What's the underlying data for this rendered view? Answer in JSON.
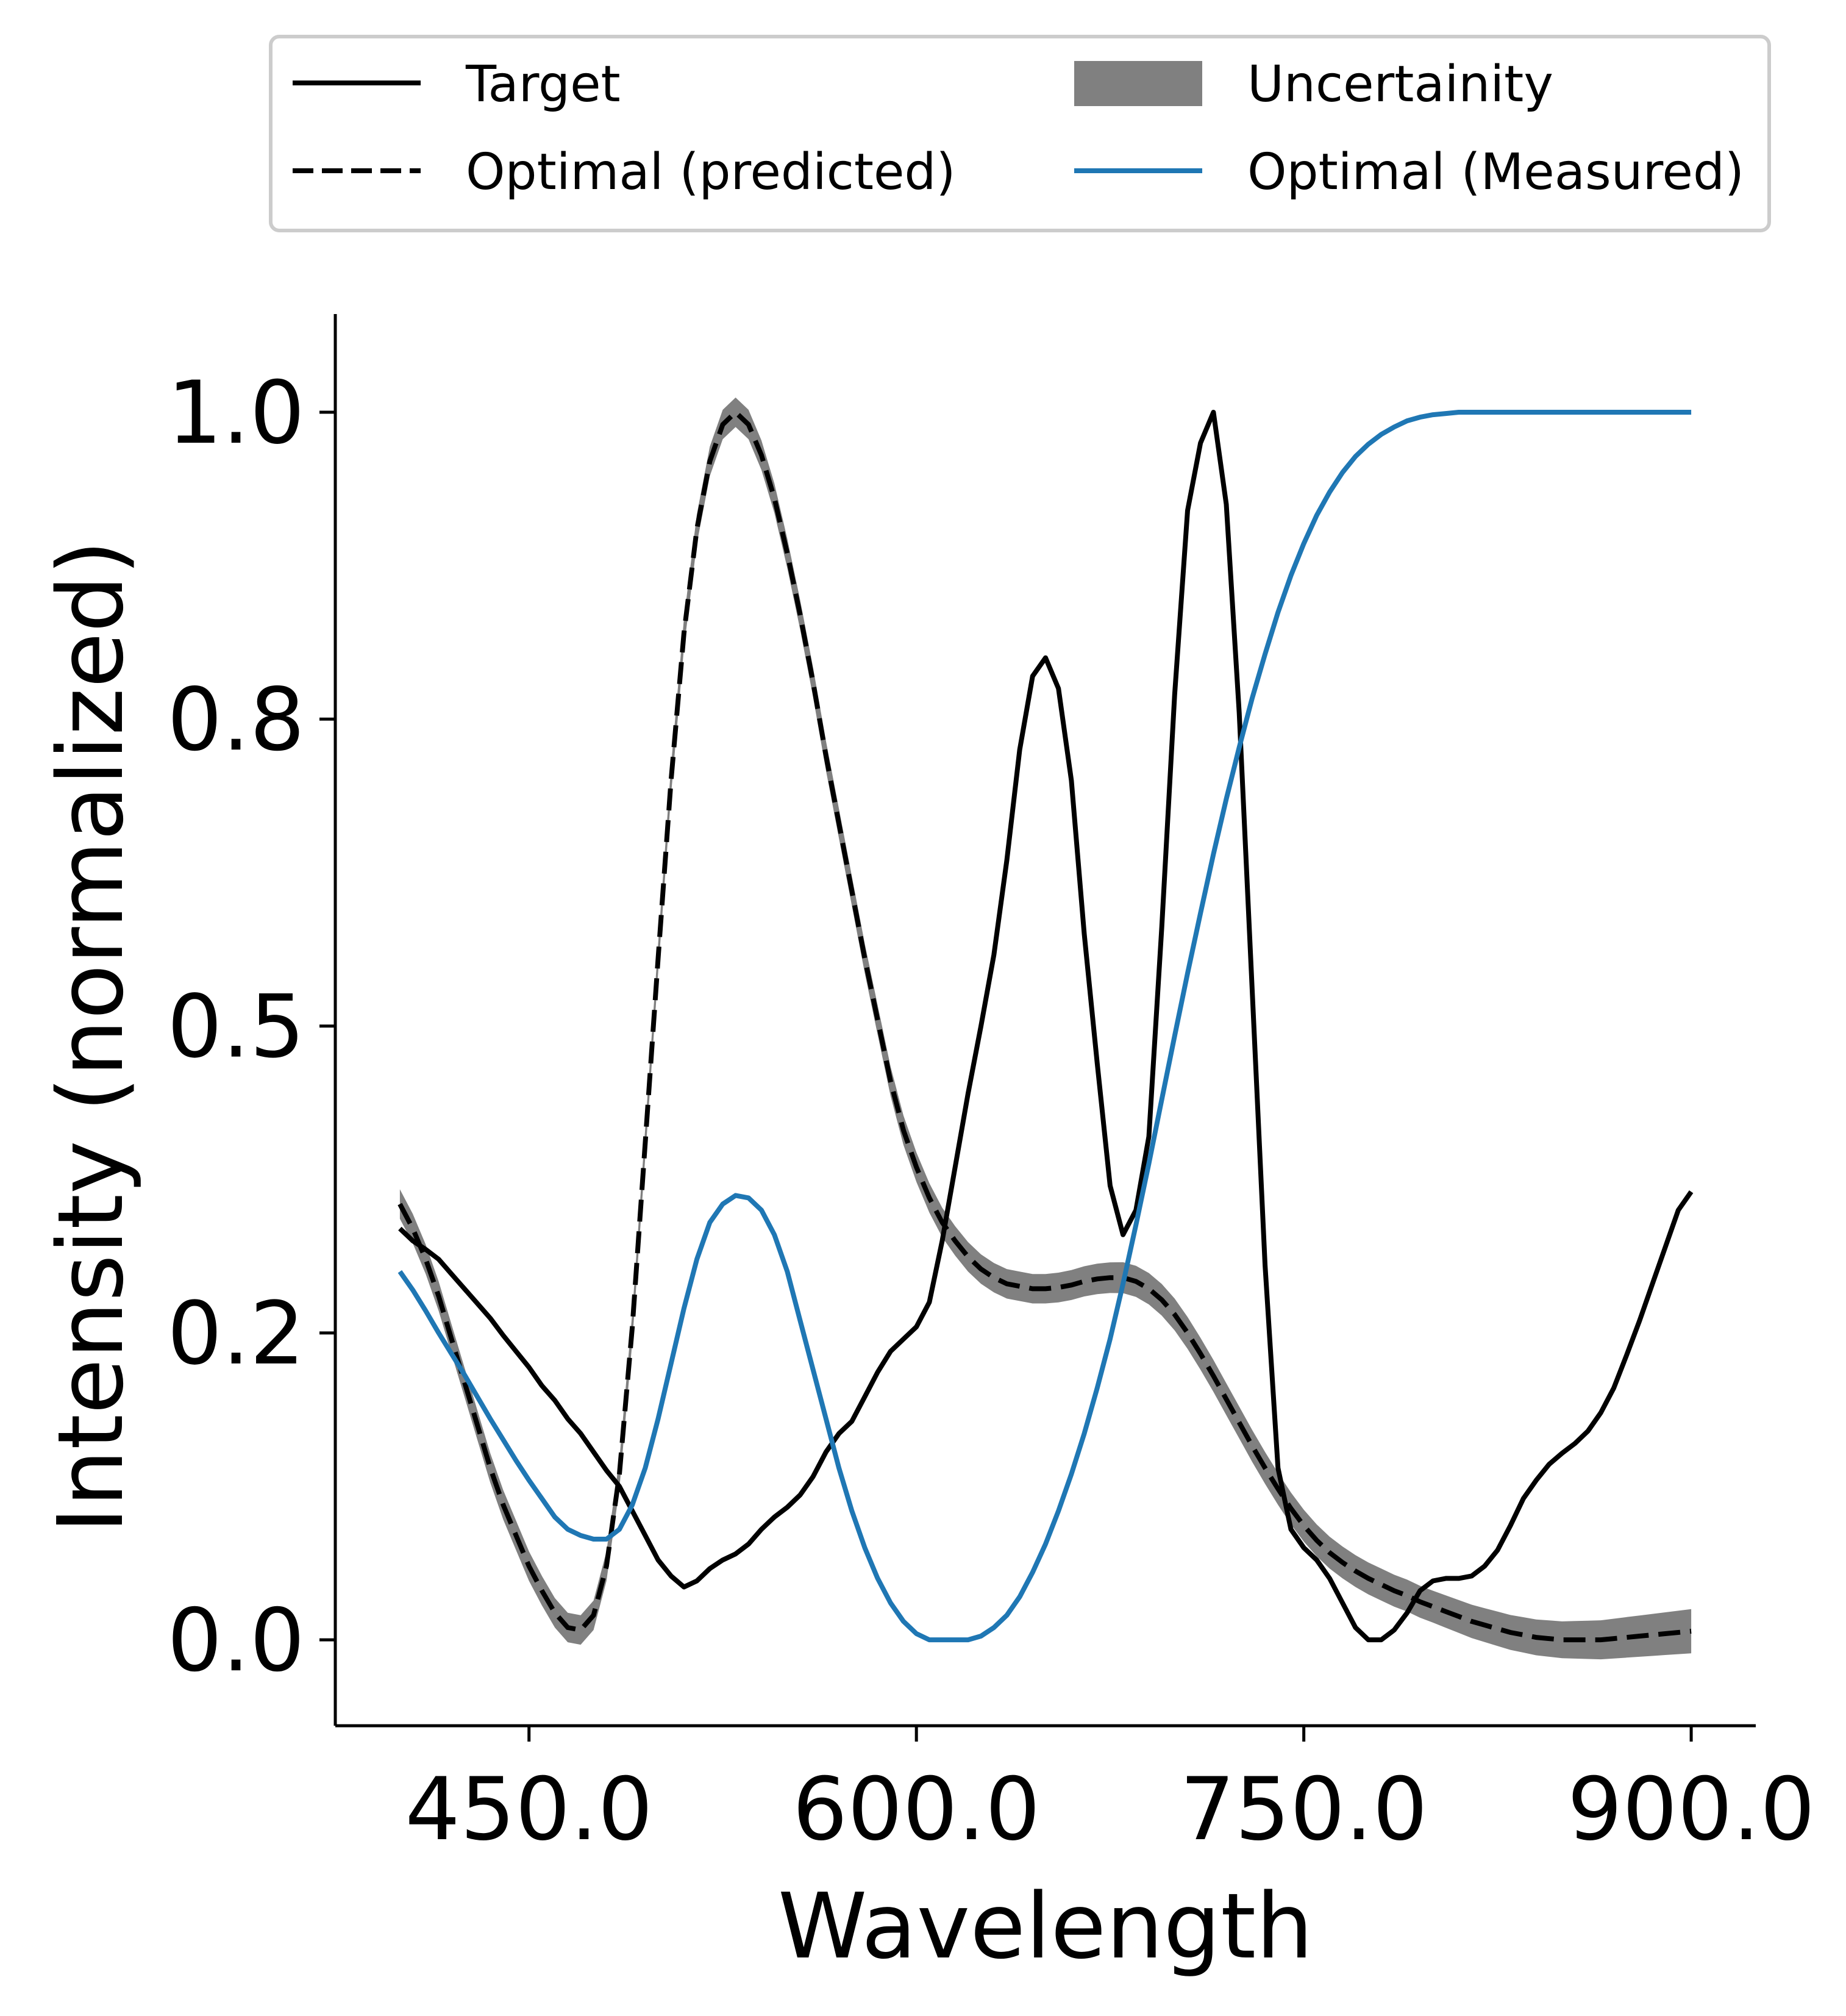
{
  "chart_data": {
    "type": "line",
    "xlabel": "Wavelength",
    "ylabel": "Intensity (normalized)",
    "xlim": [
      375,
      925
    ],
    "ylim": [
      -0.07,
      1.08
    ],
    "x_ticks": [
      450,
      600,
      750,
      900
    ],
    "x_tick_labels": [
      "450.0",
      "600.0",
      "750.0",
      "900.0"
    ],
    "y_ticks": [
      0.0,
      0.25,
      0.5,
      0.75,
      1.0
    ],
    "y_tick_labels": [
      "0.0",
      "0.2",
      "0.5",
      "0.8",
      "1.0"
    ],
    "grid": false,
    "legend": {
      "position": "top",
      "columns": 2
    },
    "series": [
      {
        "name": "Target",
        "style": "solid",
        "color": "#000000",
        "points": [
          [
            400,
            0.335
          ],
          [
            405,
            0.325
          ],
          [
            410,
            0.318
          ],
          [
            415,
            0.31
          ],
          [
            420,
            0.298
          ],
          [
            425,
            0.286
          ],
          [
            430,
            0.274
          ],
          [
            435,
            0.262
          ],
          [
            440,
            0.248
          ],
          [
            445,
            0.235
          ],
          [
            450,
            0.222
          ],
          [
            455,
            0.207
          ],
          [
            460,
            0.195
          ],
          [
            465,
            0.18
          ],
          [
            470,
            0.168
          ],
          [
            475,
            0.153
          ],
          [
            480,
            0.138
          ],
          [
            485,
            0.125
          ],
          [
            490,
            0.105
          ],
          [
            495,
            0.085
          ],
          [
            500,
            0.065
          ],
          [
            505,
            0.052
          ],
          [
            510,
            0.043
          ],
          [
            515,
            0.048
          ],
          [
            520,
            0.058
          ],
          [
            525,
            0.065
          ],
          [
            530,
            0.07
          ],
          [
            535,
            0.078
          ],
          [
            540,
            0.09
          ],
          [
            545,
            0.1
          ],
          [
            550,
            0.108
          ],
          [
            555,
            0.118
          ],
          [
            560,
            0.133
          ],
          [
            565,
            0.153
          ],
          [
            570,
            0.168
          ],
          [
            575,
            0.178
          ],
          [
            580,
            0.198
          ],
          [
            585,
            0.218
          ],
          [
            590,
            0.235
          ],
          [
            595,
            0.245
          ],
          [
            600,
            0.255
          ],
          [
            605,
            0.275
          ],
          [
            610,
            0.325
          ],
          [
            615,
            0.385
          ],
          [
            620,
            0.445
          ],
          [
            625,
            0.5
          ],
          [
            630,
            0.558
          ],
          [
            635,
            0.635
          ],
          [
            640,
            0.725
          ],
          [
            645,
            0.785
          ],
          [
            650,
            0.8
          ],
          [
            655,
            0.775
          ],
          [
            660,
            0.7
          ],
          [
            665,
            0.575
          ],
          [
            670,
            0.47
          ],
          [
            675,
            0.37
          ],
          [
            680,
            0.33
          ],
          [
            685,
            0.35
          ],
          [
            690,
            0.41
          ],
          [
            695,
            0.58
          ],
          [
            700,
            0.77
          ],
          [
            705,
            0.92
          ],
          [
            710,
            0.975
          ],
          [
            715,
            1.0
          ],
          [
            720,
            0.925
          ],
          [
            725,
            0.755
          ],
          [
            730,
            0.53
          ],
          [
            735,
            0.305
          ],
          [
            740,
            0.14
          ],
          [
            745,
            0.09
          ],
          [
            750,
            0.075
          ],
          [
            755,
            0.065
          ],
          [
            760,
            0.05
          ],
          [
            765,
            0.03
          ],
          [
            770,
            0.01
          ],
          [
            775,
            0.0
          ],
          [
            780,
            0.0
          ],
          [
            785,
            0.008
          ],
          [
            790,
            0.022
          ],
          [
            795,
            0.04
          ],
          [
            800,
            0.048
          ],
          [
            805,
            0.05
          ],
          [
            810,
            0.05
          ],
          [
            815,
            0.052
          ],
          [
            820,
            0.06
          ],
          [
            825,
            0.073
          ],
          [
            830,
            0.093
          ],
          [
            835,
            0.115
          ],
          [
            840,
            0.13
          ],
          [
            845,
            0.143
          ],
          [
            850,
            0.152
          ],
          [
            855,
            0.16
          ],
          [
            860,
            0.17
          ],
          [
            865,
            0.185
          ],
          [
            870,
            0.205
          ],
          [
            875,
            0.232
          ],
          [
            880,
            0.26
          ],
          [
            885,
            0.29
          ],
          [
            890,
            0.32
          ],
          [
            895,
            0.35
          ],
          [
            900,
            0.365
          ]
        ]
      },
      {
        "name": "Optimal (predicted)",
        "style": "dashed",
        "color": "#000000",
        "points": [
          [
            400,
            0.355
          ],
          [
            405,
            0.335
          ],
          [
            410,
            0.31
          ],
          [
            415,
            0.28
          ],
          [
            420,
            0.245
          ],
          [
            425,
            0.21
          ],
          [
            430,
            0.175
          ],
          [
            435,
            0.14
          ],
          [
            440,
            0.11
          ],
          [
            445,
            0.085
          ],
          [
            450,
            0.06
          ],
          [
            455,
            0.04
          ],
          [
            460,
            0.022
          ],
          [
            465,
            0.01
          ],
          [
            470,
            0.008
          ],
          [
            475,
            0.02
          ],
          [
            480,
            0.06
          ],
          [
            485,
            0.135
          ],
          [
            490,
            0.255
          ],
          [
            495,
            0.405
          ],
          [
            500,
            0.555
          ],
          [
            505,
            0.7
          ],
          [
            510,
            0.82
          ],
          [
            515,
            0.905
          ],
          [
            520,
            0.96
          ],
          [
            525,
            0.99
          ],
          [
            530,
            1.0
          ],
          [
            535,
            0.99
          ],
          [
            540,
            0.965
          ],
          [
            545,
            0.93
          ],
          [
            550,
            0.885
          ],
          [
            555,
            0.835
          ],
          [
            560,
            0.78
          ],
          [
            565,
            0.72
          ],
          [
            570,
            0.665
          ],
          [
            575,
            0.61
          ],
          [
            580,
            0.555
          ],
          [
            585,
            0.505
          ],
          [
            590,
            0.455
          ],
          [
            595,
            0.415
          ],
          [
            600,
            0.385
          ],
          [
            605,
            0.36
          ],
          [
            610,
            0.34
          ],
          [
            615,
            0.325
          ],
          [
            620,
            0.312
          ],
          [
            625,
            0.302
          ],
          [
            630,
            0.295
          ],
          [
            635,
            0.29
          ],
          [
            640,
            0.288
          ],
          [
            645,
            0.286
          ],
          [
            650,
            0.286
          ],
          [
            655,
            0.287
          ],
          [
            660,
            0.289
          ],
          [
            665,
            0.292
          ],
          [
            670,
            0.294
          ],
          [
            675,
            0.295
          ],
          [
            680,
            0.295
          ],
          [
            685,
            0.292
          ],
          [
            690,
            0.286
          ],
          [
            695,
            0.277
          ],
          [
            700,
            0.265
          ],
          [
            705,
            0.25
          ],
          [
            710,
            0.233
          ],
          [
            715,
            0.215
          ],
          [
            720,
            0.196
          ],
          [
            725,
            0.177
          ],
          [
            730,
            0.158
          ],
          [
            735,
            0.14
          ],
          [
            740,
            0.123
          ],
          [
            745,
            0.107
          ],
          [
            750,
            0.093
          ],
          [
            755,
            0.081
          ],
          [
            760,
            0.071
          ],
          [
            765,
            0.063
          ],
          [
            770,
            0.056
          ],
          [
            775,
            0.05
          ],
          [
            780,
            0.045
          ],
          [
            785,
            0.04
          ],
          [
            790,
            0.036
          ],
          [
            795,
            0.031
          ],
          [
            800,
            0.027
          ],
          [
            805,
            0.023
          ],
          [
            810,
            0.019
          ],
          [
            815,
            0.015
          ],
          [
            820,
            0.012
          ],
          [
            825,
            0.009
          ],
          [
            830,
            0.006
          ],
          [
            835,
            0.004
          ],
          [
            840,
            0.002
          ],
          [
            845,
            0.001
          ],
          [
            850,
            0.0
          ],
          [
            855,
            0.0
          ],
          [
            860,
            0.0
          ],
          [
            865,
            0.0
          ],
          [
            870,
            0.001
          ],
          [
            875,
            0.002
          ],
          [
            880,
            0.003
          ],
          [
            885,
            0.004
          ],
          [
            890,
            0.005
          ],
          [
            895,
            0.006
          ],
          [
            900,
            0.007
          ]
        ]
      },
      {
        "name": "Uncertainity",
        "style": "band",
        "color": "#808080",
        "band_halfwidth": [
          [
            400,
            0.012
          ],
          [
            450,
            0.012
          ],
          [
            500,
            0.012
          ],
          [
            550,
            0.012
          ],
          [
            600,
            0.012
          ],
          [
            650,
            0.012
          ],
          [
            700,
            0.013
          ],
          [
            750,
            0.013
          ],
          [
            800,
            0.013
          ],
          [
            850,
            0.015
          ],
          [
            900,
            0.018
          ]
        ]
      },
      {
        "name": "Optimal (Measured)",
        "style": "solid",
        "color": "#1f77b4",
        "points": [
          [
            400,
            0.3
          ],
          [
            405,
            0.285
          ],
          [
            410,
            0.268
          ],
          [
            415,
            0.25
          ],
          [
            420,
            0.233
          ],
          [
            425,
            0.216
          ],
          [
            430,
            0.198
          ],
          [
            435,
            0.18
          ],
          [
            440,
            0.163
          ],
          [
            445,
            0.146
          ],
          [
            450,
            0.13
          ],
          [
            455,
            0.115
          ],
          [
            460,
            0.1
          ],
          [
            465,
            0.09
          ],
          [
            470,
            0.085
          ],
          [
            475,
            0.082
          ],
          [
            480,
            0.082
          ],
          [
            485,
            0.09
          ],
          [
            490,
            0.11
          ],
          [
            495,
            0.14
          ],
          [
            500,
            0.18
          ],
          [
            505,
            0.225
          ],
          [
            510,
            0.27
          ],
          [
            515,
            0.31
          ],
          [
            520,
            0.34
          ],
          [
            525,
            0.355
          ],
          [
            530,
            0.362
          ],
          [
            535,
            0.36
          ],
          [
            540,
            0.35
          ],
          [
            545,
            0.33
          ],
          [
            550,
            0.3
          ],
          [
            555,
            0.26
          ],
          [
            560,
            0.22
          ],
          [
            565,
            0.18
          ],
          [
            570,
            0.14
          ],
          [
            575,
            0.105
          ],
          [
            580,
            0.075
          ],
          [
            585,
            0.05
          ],
          [
            590,
            0.03
          ],
          [
            595,
            0.015
          ],
          [
            600,
            0.005
          ],
          [
            605,
            0.0
          ],
          [
            610,
            0.0
          ],
          [
            615,
            0.0
          ],
          [
            620,
            0.0
          ],
          [
            625,
            0.003
          ],
          [
            630,
            0.01
          ],
          [
            635,
            0.02
          ],
          [
            640,
            0.035
          ],
          [
            645,
            0.055
          ],
          [
            650,
            0.078
          ],
          [
            655,
            0.105
          ],
          [
            660,
            0.135
          ],
          [
            665,
            0.168
          ],
          [
            670,
            0.205
          ],
          [
            675,
            0.245
          ],
          [
            680,
            0.29
          ],
          [
            685,
            0.338
          ],
          [
            690,
            0.388
          ],
          [
            695,
            0.44
          ],
          [
            700,
            0.492
          ],
          [
            705,
            0.543
          ],
          [
            710,
            0.592
          ],
          [
            715,
            0.64
          ],
          [
            720,
            0.685
          ],
          [
            725,
            0.727
          ],
          [
            730,
            0.767
          ],
          [
            735,
            0.803
          ],
          [
            740,
            0.837
          ],
          [
            745,
            0.867
          ],
          [
            750,
            0.893
          ],
          [
            755,
            0.916
          ],
          [
            760,
            0.935
          ],
          [
            765,
            0.951
          ],
          [
            770,
            0.964
          ],
          [
            775,
            0.974
          ],
          [
            780,
            0.982
          ],
          [
            785,
            0.988
          ],
          [
            790,
            0.993
          ],
          [
            795,
            0.996
          ],
          [
            800,
            0.998
          ],
          [
            805,
            0.999
          ],
          [
            810,
            1.0
          ],
          [
            815,
            1.0
          ],
          [
            820,
            1.0
          ],
          [
            825,
            1.0
          ],
          [
            830,
            1.0
          ],
          [
            835,
            1.0
          ],
          [
            840,
            1.0
          ],
          [
            845,
            1.0
          ],
          [
            850,
            1.0
          ],
          [
            855,
            1.0
          ],
          [
            860,
            1.0
          ],
          [
            865,
            1.0
          ],
          [
            870,
            1.0
          ],
          [
            875,
            1.0
          ],
          [
            880,
            1.0
          ],
          [
            885,
            1.0
          ],
          [
            890,
            1.0
          ],
          [
            895,
            1.0
          ],
          [
            900,
            1.0
          ]
        ]
      }
    ]
  }
}
